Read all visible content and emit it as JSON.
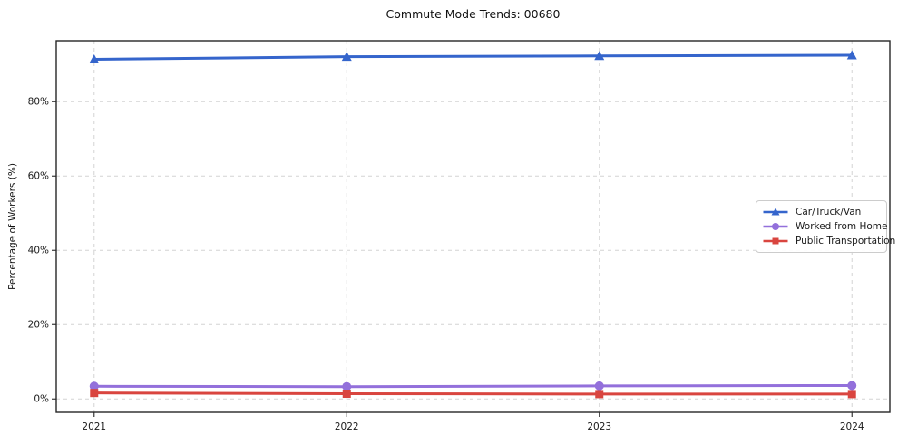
{
  "chart_data": {
    "type": "line",
    "title": "Commute Mode Trends: 00680",
    "ylabel": "Percentage of Workers (%)",
    "x": [
      2021,
      2022,
      2023,
      2024
    ],
    "xticks": [
      2021,
      2022,
      2023,
      2024
    ],
    "xtick_labels": [
      "2021",
      "2022",
      "2023",
      "2024"
    ],
    "yticks": [
      0,
      20,
      40,
      60,
      80
    ],
    "ytick_labels": [
      "0%",
      "20%",
      "40%",
      "60%",
      "80%"
    ],
    "xlim": [
      2020.85,
      2024.15
    ],
    "ylim": [
      -3.6,
      96.4
    ],
    "grid": true,
    "grid_style": "dashed",
    "legend_position": "center-right",
    "series": [
      {
        "name": "Car/Truck/Van",
        "color": "#3565cc",
        "marker": "triangle",
        "values": [
          91.4,
          92.1,
          92.3,
          92.5
        ]
      },
      {
        "name": "Worked from Home",
        "color": "#9370db",
        "marker": "circle",
        "values": [
          3.4,
          3.3,
          3.5,
          3.6
        ]
      },
      {
        "name": "Public Transportation",
        "color": "#d9453f",
        "marker": "square",
        "values": [
          1.6,
          1.4,
          1.3,
          1.3
        ]
      }
    ]
  }
}
